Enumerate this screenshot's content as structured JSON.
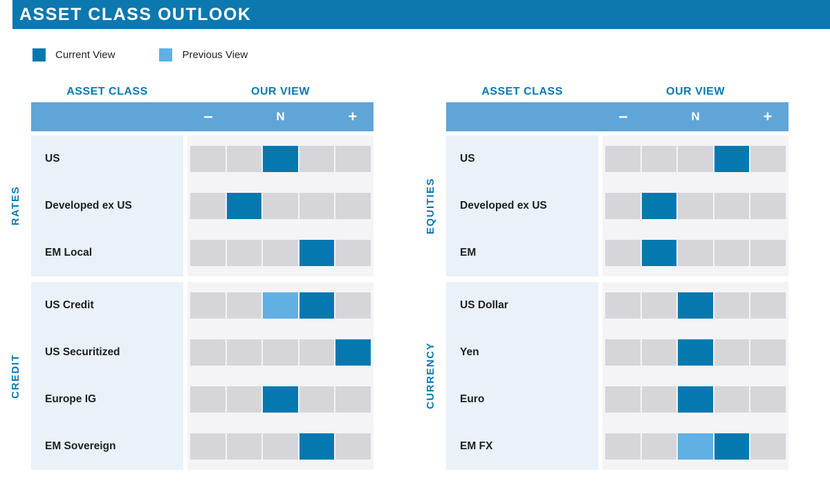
{
  "title": "ASSET CLASS OUTLOOK",
  "legend": {
    "current_label": "Current View",
    "previous_label": "Previous View"
  },
  "scale": {
    "minus": "–",
    "neutral": "N",
    "plus": "+",
    "levels": 5
  },
  "colors": {
    "primary": "#0b78b0",
    "current": "#0678b0",
    "previous": "#60b0e3",
    "band": "#5fa5d8",
    "assetbg": "#e9f1f9",
    "viewbg": "#f4f4f6",
    "cellgray": "#d6d6da"
  },
  "tables": [
    {
      "asset_class_header": "ASSET CLASS",
      "our_view_header": "OUR VIEW",
      "groups": [
        {
          "name": "RATES",
          "rows": [
            {
              "label": "US",
              "current": 3,
              "previous": null
            },
            {
              "label": "Developed ex US",
              "current": 2,
              "previous": null
            },
            {
              "label": "EM Local",
              "current": 4,
              "previous": null
            }
          ]
        },
        {
          "name": "CREDIT",
          "rows": [
            {
              "label": "US Credit",
              "current": 4,
              "previous": 3
            },
            {
              "label": "US Securitized",
              "current": 5,
              "previous": null
            },
            {
              "label": "Europe IG",
              "current": 3,
              "previous": null
            },
            {
              "label": "EM Sovereign",
              "current": 4,
              "previous": null
            }
          ]
        }
      ]
    },
    {
      "asset_class_header": "ASSET CLASS",
      "our_view_header": "OUR VIEW",
      "groups": [
        {
          "name": "EQUITIES",
          "rows": [
            {
              "label": "US",
              "current": 4,
              "previous": null
            },
            {
              "label": "Developed ex US",
              "current": 2,
              "previous": null
            },
            {
              "label": "EM",
              "current": 2,
              "previous": null
            }
          ]
        },
        {
          "name": "CURRENCY",
          "rows": [
            {
              "label": "US Dollar",
              "current": 3,
              "previous": null
            },
            {
              "label": "Yen",
              "current": 3,
              "previous": null
            },
            {
              "label": "Euro",
              "current": 3,
              "previous": null
            },
            {
              "label": "EM FX",
              "current": 4,
              "previous": 3
            }
          ]
        }
      ]
    }
  ],
  "chart_data": {
    "type": "table",
    "title": "ASSET CLASS OUTLOOK",
    "scale": {
      "min": 1,
      "max": 5,
      "neutral": 3,
      "tick_labels": {
        "1": "–",
        "3": "N",
        "5": "+"
      }
    },
    "legend": [
      "Current View",
      "Previous View"
    ],
    "groups": [
      {
        "group": "RATES",
        "rows": [
          {
            "asset": "US",
            "current_view": 3
          },
          {
            "asset": "Developed ex US",
            "current_view": 2
          },
          {
            "asset": "EM Local",
            "current_view": 4
          }
        ]
      },
      {
        "group": "CREDIT",
        "rows": [
          {
            "asset": "US Credit",
            "current_view": 4,
            "previous_view": 3
          },
          {
            "asset": "US Securitized",
            "current_view": 5
          },
          {
            "asset": "Europe IG",
            "current_view": 3
          },
          {
            "asset": "EM Sovereign",
            "current_view": 4
          }
        ]
      },
      {
        "group": "EQUITIES",
        "rows": [
          {
            "asset": "US",
            "current_view": 4
          },
          {
            "asset": "Developed ex US",
            "current_view": 2
          },
          {
            "asset": "EM",
            "current_view": 2
          }
        ]
      },
      {
        "group": "CURRENCY",
        "rows": [
          {
            "asset": "US Dollar",
            "current_view": 3
          },
          {
            "asset": "Yen",
            "current_view": 3
          },
          {
            "asset": "Euro",
            "current_view": 3
          },
          {
            "asset": "EM FX",
            "current_view": 4,
            "previous_view": 3
          }
        ]
      }
    ]
  }
}
